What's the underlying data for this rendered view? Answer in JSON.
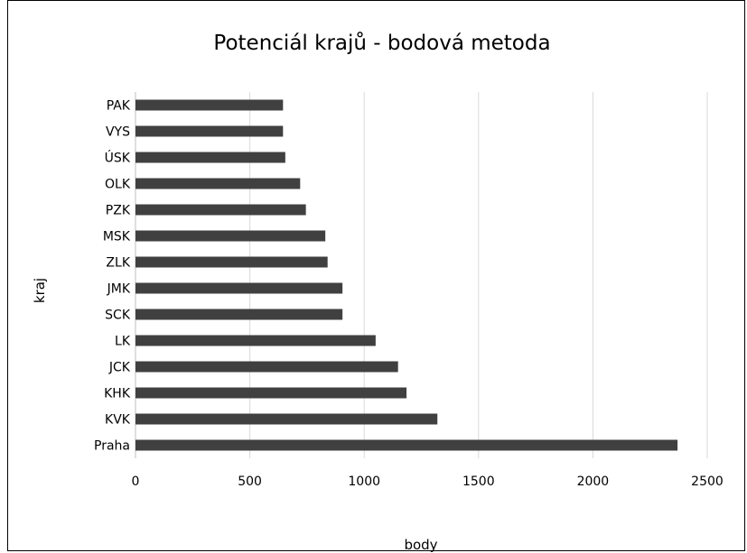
{
  "chart_data": {
    "type": "bar",
    "orientation": "horizontal",
    "title": "Potenciál krajů -  bodová metoda",
    "xlabel": "body",
    "ylabel": "kraj",
    "categories": [
      "PAK",
      "VYS",
      "ÚSK",
      "OLK",
      "PZK",
      "MSK",
      "ZLK",
      "JMK",
      "SCK",
      "LK",
      "JCK",
      "KHK",
      "KVK",
      "Praha"
    ],
    "values": [
      645,
      645,
      655,
      720,
      745,
      830,
      840,
      905,
      905,
      1050,
      1148,
      1185,
      1320,
      2370
    ],
    "xlim": [
      0,
      2500
    ],
    "xticks": [
      0,
      500,
      1000,
      1500,
      2000,
      2500
    ],
    "grid": "vertical",
    "legend": "none",
    "bar_color": "#404040",
    "grid_color": "#d9d9d9"
  }
}
